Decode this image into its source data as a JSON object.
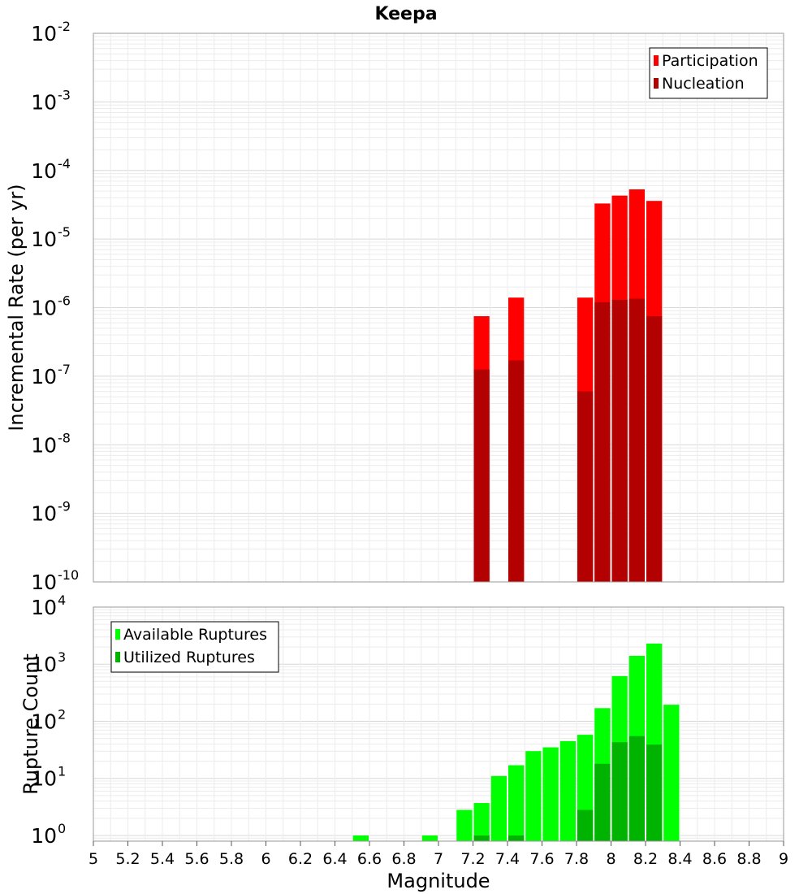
{
  "chart_title": "Keepa",
  "chart_data": [
    {
      "type": "bar",
      "xlabel": "",
      "ylabel": "Incremental Rate (per yr)",
      "yscale": "log",
      "ylim_exponents": [
        -10,
        -2
      ],
      "xlim": [
        5,
        9
      ],
      "bar_width": 0.1,
      "grid": true,
      "legend_position": "top-right",
      "y_tick_base": "10",
      "y_tick_exponents": [
        "-2",
        "-3",
        "-4",
        "-5",
        "-6",
        "-7",
        "-8",
        "-9",
        "-10"
      ],
      "series": [
        {
          "name": "Participation",
          "color": "#ff0000",
          "points": [
            {
              "x": 7.25,
              "y": 7.5e-07
            },
            {
              "x": 7.45,
              "y": 1.4e-06
            },
            {
              "x": 7.85,
              "y": 1.4e-06
            },
            {
              "x": 7.95,
              "y": 3.3e-05
            },
            {
              "x": 8.05,
              "y": 4.3e-05
            },
            {
              "x": 8.15,
              "y": 5.3e-05
            },
            {
              "x": 8.25,
              "y": 3.6e-05
            }
          ]
        },
        {
          "name": "Nucleation",
          "color": "#b30000",
          "points": [
            {
              "x": 7.25,
              "y": 1.25e-07
            },
            {
              "x": 7.45,
              "y": 1.7e-07
            },
            {
              "x": 7.85,
              "y": 6e-08
            },
            {
              "x": 7.95,
              "y": 1.2e-06
            },
            {
              "x": 8.05,
              "y": 1.3e-06
            },
            {
              "x": 8.15,
              "y": 1.35e-06
            },
            {
              "x": 8.25,
              "y": 7.5e-07
            }
          ]
        }
      ]
    },
    {
      "type": "bar",
      "xlabel": "Magnitude",
      "ylabel": "Rupture Count",
      "yscale": "log",
      "ylim_exponents": [
        -0.1,
        4
      ],
      "xlim": [
        5,
        9
      ],
      "bar_width": 0.1,
      "grid": true,
      "legend_position": "top-left",
      "y_tick_base": "10",
      "y_tick_exponents": [
        "4",
        "3",
        "2",
        "1",
        "0"
      ],
      "x_ticks": [
        "5",
        "5.2",
        "5.4",
        "5.6",
        "5.8",
        "6",
        "6.2",
        "6.4",
        "6.6",
        "6.8",
        "7",
        "7.2",
        "7.4",
        "7.6",
        "7.8",
        "8",
        "8.2",
        "8.4",
        "8.6",
        "8.8",
        "9"
      ],
      "series": [
        {
          "name": "Available Ruptures",
          "color": "#00ff00",
          "points": [
            {
              "x": 6.55,
              "y": 1
            },
            {
              "x": 6.95,
              "y": 1
            },
            {
              "x": 7.15,
              "y": 2.8
            },
            {
              "x": 7.25,
              "y": 3.7
            },
            {
              "x": 7.35,
              "y": 11
            },
            {
              "x": 7.45,
              "y": 17
            },
            {
              "x": 7.55,
              "y": 30
            },
            {
              "x": 7.65,
              "y": 35
            },
            {
              "x": 7.75,
              "y": 45
            },
            {
              "x": 7.85,
              "y": 58
            },
            {
              "x": 7.95,
              "y": 170
            },
            {
              "x": 8.05,
              "y": 620
            },
            {
              "x": 8.15,
              "y": 1400
            },
            {
              "x": 8.25,
              "y": 2300
            },
            {
              "x": 8.35,
              "y": 195
            }
          ]
        },
        {
          "name": "Utilized Ruptures",
          "color": "#00b300",
          "points": [
            {
              "x": 7.25,
              "y": 1
            },
            {
              "x": 7.45,
              "y": 1
            },
            {
              "x": 7.85,
              "y": 2.8
            },
            {
              "x": 7.95,
              "y": 18
            },
            {
              "x": 8.05,
              "y": 43
            },
            {
              "x": 8.15,
              "y": 55
            },
            {
              "x": 8.25,
              "y": 39
            }
          ]
        }
      ]
    }
  ]
}
